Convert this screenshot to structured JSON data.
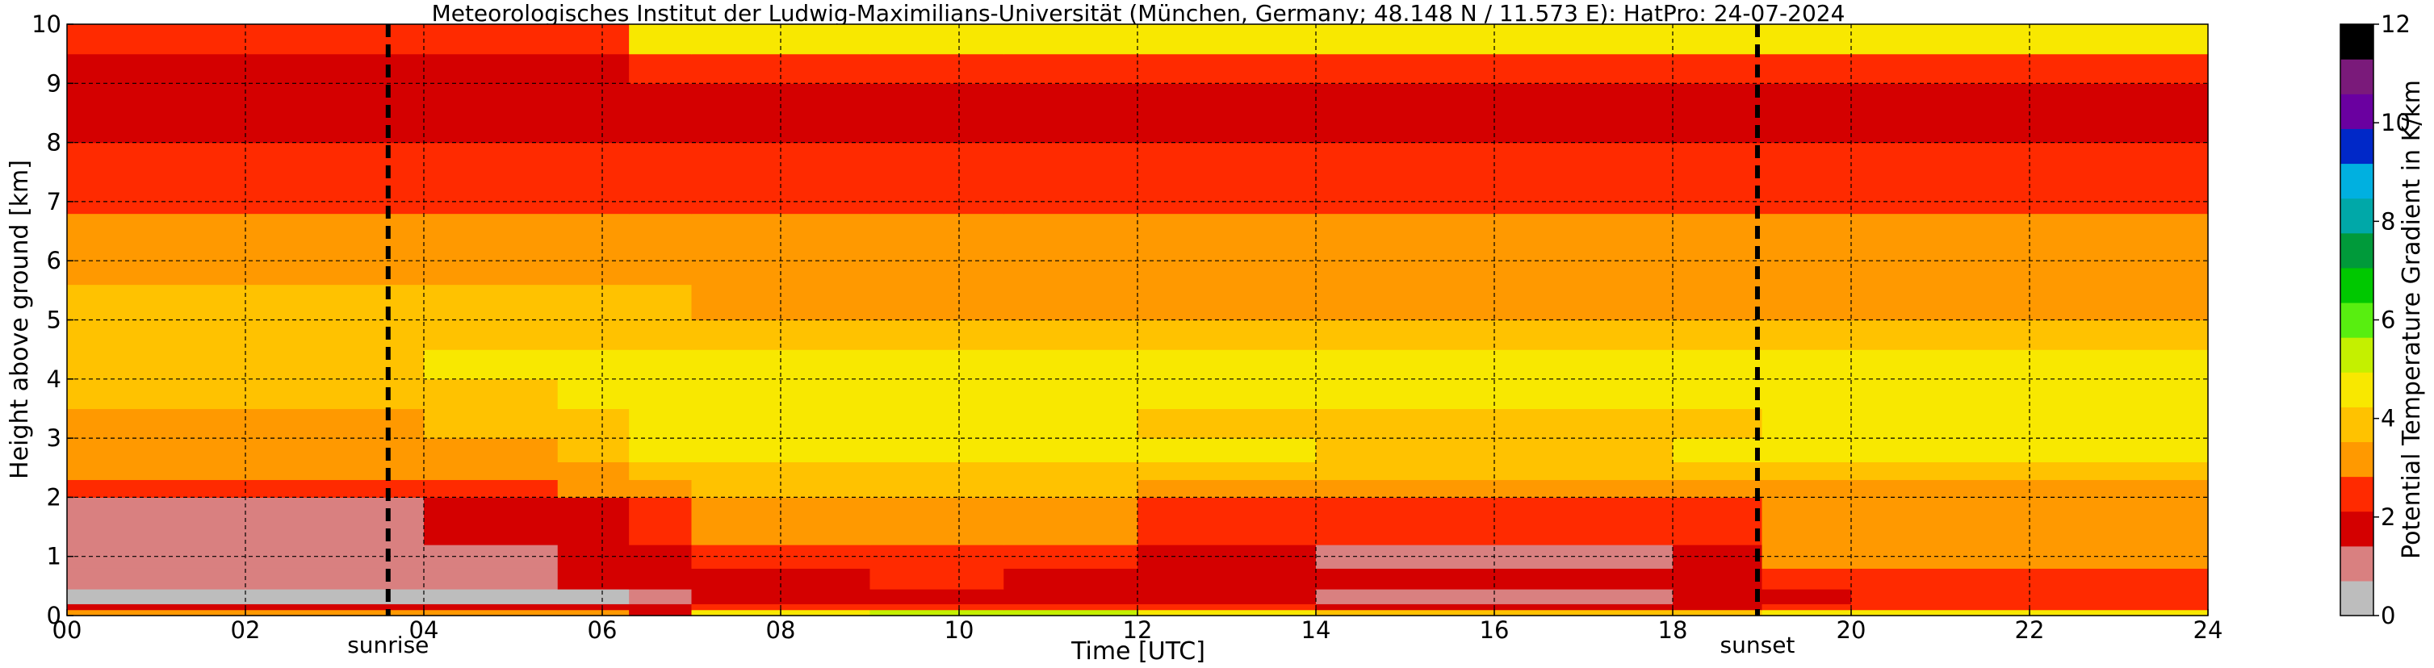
{
  "chart_data": {
    "type": "heatmap",
    "title": "Meteorologisches Institut der Ludwig-Maximilians-Universität (München, Germany; 48.148 N / 11.573 E):    HatPro: 24-07-2024",
    "xlabel": "Time [UTC]",
    "ylabel": "Height above ground [km]",
    "xlim": [
      0,
      24
    ],
    "ylim": [
      0,
      10
    ],
    "x_ticks": [
      "00",
      "02",
      "04",
      "06",
      "08",
      "10",
      "12",
      "14",
      "16",
      "18",
      "20",
      "22",
      "24"
    ],
    "y_ticks": [
      "0",
      "1",
      "2",
      "3",
      "4",
      "5",
      "6",
      "7",
      "8",
      "9",
      "10"
    ],
    "grid": true,
    "colorbar": {
      "label": "Potential Temperature Gradient in K/km",
      "range": [
        0,
        12
      ],
      "ticks": [
        "0",
        "2",
        "4",
        "6",
        "8",
        "10",
        "12"
      ],
      "colors": [
        "#bdbdbd",
        "#d98080",
        "#d40000",
        "#ff2a00",
        "#ff9900",
        "#ffc200",
        "#f8e800",
        "#c4f000",
        "#58ee10",
        "#00c800",
        "#009a3a",
        "#00a8a8",
        "#00b0e0",
        "#0028c8",
        "#6a00a0",
        "#7a1a7a",
        "#000000"
      ]
    },
    "annotations": [
      {
        "text": "sunrise",
        "x": 3.6
      },
      {
        "text": "sunset",
        "x": 18.95
      }
    ],
    "column_times": [
      0,
      2,
      4,
      5.5,
      6.3,
      7,
      9,
      10.5,
      12,
      14,
      16,
      18,
      19,
      20,
      24
    ],
    "layer_heights_km": [
      0,
      0.1,
      0.2,
      0.45,
      0.8,
      1.2,
      2,
      2.3,
      2.6,
      3,
      3.5,
      4,
      4.5,
      5,
      5.6,
      6,
      6.8,
      8,
      9,
      9.5,
      10
    ],
    "gradient_values": [
      [
        3.0,
        3.0,
        3.0,
        3.0,
        2.0,
        5.2,
        5.3,
        5.3,
        4.8,
        4.2,
        4.2,
        4.2,
        5.0,
        5.2,
        5.2
      ],
      [
        1.8,
        1.8,
        1.8,
        1.8,
        1.8,
        2.6,
        2.8,
        2.6,
        2.3,
        2.0,
        2.0,
        2.1,
        2.6,
        2.7,
        2.7
      ],
      [
        0.0,
        0.0,
        0.0,
        0.2,
        1.4,
        1.8,
        1.9,
        2.0,
        1.6,
        1.4,
        1.4,
        1.5,
        2.2,
        2.4,
        2.4
      ],
      [
        1.4,
        1.4,
        1.4,
        1.5,
        1.7,
        2.2,
        2.4,
        2.1,
        1.9,
        1.5,
        1.5,
        1.6,
        2.7,
        2.8,
        2.8
      ],
      [
        1.3,
        1.3,
        1.3,
        1.5,
        2.2,
        2.8,
        2.9,
        2.5,
        1.9,
        1.4,
        1.4,
        1.5,
        3.0,
        3.1,
        3.1
      ],
      [
        1.4,
        1.4,
        1.5,
        1.6,
        2.8,
        3.0,
        3.2,
        3.0,
        2.8,
        2.4,
        2.4,
        2.6,
        3.2,
        3.3,
        3.3
      ],
      [
        2.4,
        2.4,
        2.8,
        3.2,
        3.6,
        3.8,
        3.8,
        3.8,
        3.6,
        3.4,
        3.4,
        3.5,
        3.6,
        3.6,
        3.6
      ],
      [
        3.0,
        3.0,
        3.2,
        3.5,
        4.0,
        4.3,
        4.2,
        4.0,
        4.0,
        3.8,
        3.8,
        3.9,
        4.0,
        4.1,
        4.1
      ],
      [
        3.4,
        3.4,
        3.5,
        3.8,
        4.6,
        5.0,
        4.9,
        4.8,
        4.7,
        4.4,
        4.4,
        4.5,
        4.6,
        4.8,
        4.8
      ],
      [
        3.6,
        3.6,
        4.0,
        4.3,
        4.8,
        4.9,
        4.6,
        4.5,
        4.4,
        4.3,
        4.3,
        4.4,
        4.5,
        4.6,
        4.6
      ],
      [
        3.8,
        3.8,
        4.4,
        4.8,
        5.0,
        5.1,
        4.9,
        4.8,
        4.8,
        4.9,
        4.9,
        4.9,
        5.0,
        5.0,
        5.0
      ],
      [
        4.1,
        4.1,
        4.6,
        4.7,
        4.8,
        4.7,
        4.6,
        4.5,
        4.5,
        4.6,
        4.6,
        4.6,
        4.7,
        4.7,
        4.7
      ],
      [
        4.0,
        4.0,
        4.1,
        4.1,
        4.1,
        4.0,
        4.0,
        4.0,
        4.0,
        4.0,
        4.0,
        4.0,
        4.0,
        4.0,
        4.0
      ],
      [
        3.8,
        3.8,
        3.8,
        3.8,
        3.8,
        3.7,
        3.7,
        3.7,
        3.7,
        3.7,
        3.7,
        3.7,
        3.7,
        3.7,
        3.7
      ],
      [
        3.4,
        3.4,
        3.4,
        3.4,
        3.4,
        3.4,
        3.4,
        3.4,
        3.4,
        3.4,
        3.4,
        3.4,
        3.4,
        3.4,
        3.4
      ],
      [
        3.0,
        3.0,
        3.0,
        3.0,
        3.0,
        3.0,
        3.0,
        3.0,
        3.0,
        3.0,
        3.0,
        3.0,
        3.0,
        3.0,
        3.0
      ],
      [
        2.4,
        2.4,
        2.4,
        2.4,
        2.4,
        2.4,
        2.4,
        2.4,
        2.4,
        2.4,
        2.4,
        2.4,
        2.4,
        2.4,
        2.4
      ],
      [
        2.0,
        2.0,
        2.0,
        2.0,
        2.0,
        2.0,
        2.0,
        2.0,
        2.0,
        2.0,
        2.0,
        2.0,
        2.0,
        2.0,
        2.0
      ],
      [
        2.2,
        2.2,
        2.2,
        2.2,
        2.3,
        2.3,
        2.3,
        2.3,
        2.3,
        2.3,
        2.3,
        2.3,
        2.3,
        2.3,
        2.3
      ],
      [
        2.8,
        2.8,
        2.8,
        2.8,
        4.6,
        4.6,
        4.6,
        4.6,
        4.6,
        4.6,
        4.6,
        4.6,
        4.6,
        4.6,
        4.6
      ]
    ]
  }
}
